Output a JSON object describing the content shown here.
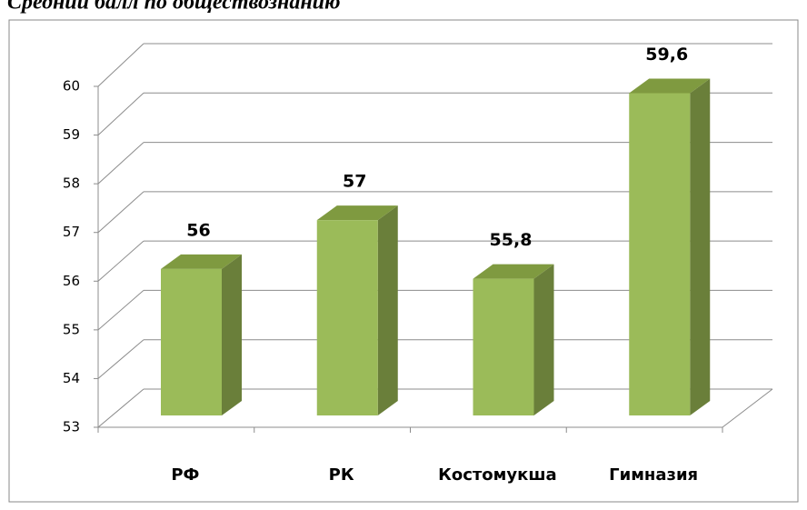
{
  "chart_data": {
    "type": "bar3d",
    "title": "Средний балл по обществознанию",
    "categories": [
      "РФ",
      "РК",
      "Костомукша",
      "Гимназия"
    ],
    "values": [
      56,
      57,
      55.8,
      59.6
    ],
    "value_labels": [
      "56",
      "57",
      "55,8",
      "59,6"
    ],
    "color": "#9bbb59",
    "ylim": [
      53,
      60
    ],
    "yticks": [
      53,
      54,
      55,
      56,
      57,
      58,
      59,
      60
    ],
    "grid": true
  }
}
